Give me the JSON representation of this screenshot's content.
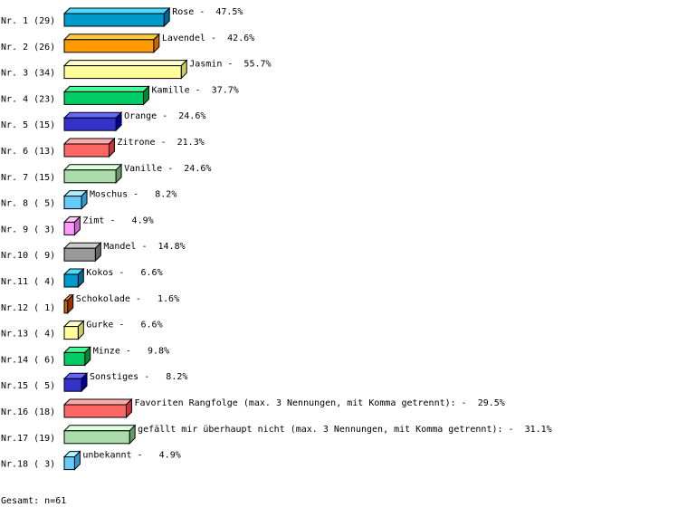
{
  "chart_data": {
    "type": "bar",
    "orientation": "horizontal",
    "style": "3d",
    "categories": [
      "Nr. 1 (29)",
      "Nr. 2 (26)",
      "Nr. 3 (34)",
      "Nr. 4 (23)",
      "Nr. 5 (15)",
      "Nr. 6 (13)",
      "Nr. 7 (15)",
      "Nr. 8 ( 5)",
      "Nr. 9 ( 3)",
      "Nr.10 ( 9)",
      "Nr.11 ( 4)",
      "Nr.12 ( 1)",
      "Nr.13 ( 4)",
      "Nr.14 ( 6)",
      "Nr.15 ( 5)",
      "Nr.16 (18)",
      "Nr.17 (19)",
      "Nr.18 ( 3)"
    ],
    "labels": [
      "Rose",
      "Lavendel",
      "Jasmin",
      "Kamille",
      "Orange",
      "Zitrone",
      "Vanille",
      "Moschus",
      "Zimt",
      "Mandel",
      "Kokos",
      "Schokolade",
      "Gurke",
      "Minze",
      "Sonstiges",
      "Favoriten Rangfolge (max. 3 Nennungen, mit Komma getrennt):",
      "gefällt mir überhaupt nicht (max. 3 Nennungen, mit Komma getrennt):",
      "unbekannt"
    ],
    "counts": [
      29,
      26,
      34,
      23,
      15,
      13,
      15,
      5,
      3,
      9,
      4,
      1,
      4,
      6,
      5,
      18,
      19,
      3
    ],
    "values": [
      47.5,
      42.6,
      55.7,
      37.7,
      24.6,
      21.3,
      24.6,
      8.2,
      4.9,
      14.8,
      6.6,
      1.6,
      6.6,
      9.8,
      8.2,
      29.5,
      31.1,
      4.9
    ],
    "value_labels": [
      "47.5%",
      "42.6%",
      "55.7%",
      "37.7%",
      "24.6%",
      "21.3%",
      "24.6%",
      "8.2%",
      "4.9%",
      "14.8%",
      "6.6%",
      "1.6%",
      "6.6%",
      "9.8%",
      "8.2%",
      "29.5%",
      "31.1%",
      "4.9%"
    ],
    "colors": [
      "#0099cc",
      "#ff9900",
      "#ffff99",
      "#00cc66",
      "#3333cc",
      "#ff6666",
      "#aaddaa",
      "#66ccff",
      "#ff99ff",
      "#999999",
      "#0099cc",
      "#cc6600",
      "#ffff99",
      "#00cc66",
      "#3333cc",
      "#ff6666",
      "#aaddaa",
      "#66ccff"
    ],
    "top_colors": [
      "#44ddff",
      "#ffcc33",
      "#ffffcc",
      "#44ff99",
      "#6666ff",
      "#ffaaaa",
      "#ddffdd",
      "#aaeeff",
      "#ffccff",
      "#cccccc",
      "#44ddff",
      "#ff9933",
      "#ffffcc",
      "#44ff99",
      "#6666ff",
      "#ffaaaa",
      "#ddffdd",
      "#aaffff"
    ],
    "side_colors": [
      "#006699",
      "#cc6600",
      "#cccc66",
      "#008833",
      "#000099",
      "#cc3333",
      "#669966",
      "#3399cc",
      "#cc66cc",
      "#666666",
      "#006699",
      "#993300",
      "#cccc66",
      "#008833",
      "#000099",
      "#cc3333",
      "#669966",
      "#3399cc"
    ],
    "grid": false,
    "legend": "none"
  },
  "footer": {
    "total": "Gesamt: n=61"
  }
}
